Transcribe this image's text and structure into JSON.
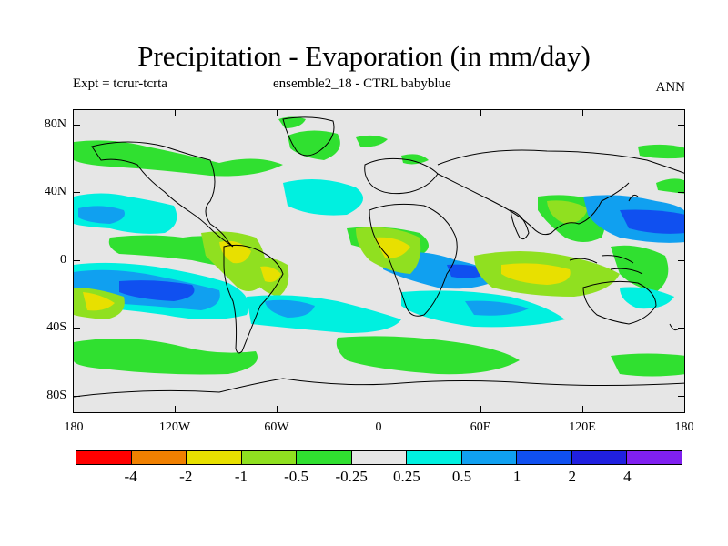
{
  "header": {
    "title": "Precipitation - Evaporation (in mm/day)",
    "expt": "Expt = tcrur-tcrta",
    "run": "ensemble2_18 - CTRL babyblue",
    "season": "ANN"
  },
  "map": {
    "projection": "cylindrical equidistant",
    "lat_labels": [
      "80N",
      "40N",
      "0",
      "40S",
      "80S"
    ],
    "lon_labels": [
      "180",
      "120W",
      "60W",
      "0",
      "60E",
      "120E",
      "180"
    ],
    "background_color": "#e6e6e6",
    "coastline_color": "#000000"
  },
  "colorbar": {
    "colors": [
      "#ff0000",
      "#f08000",
      "#e8e000",
      "#90e020",
      "#30e030",
      "#e6e6e6",
      "#00f0e0",
      "#10a0f0",
      "#1050f0",
      "#2020e0",
      "#8020f0"
    ],
    "labels": [
      "-4",
      "-2",
      "-1",
      "-0.5",
      "-0.25",
      "0.25",
      "0.5",
      "1",
      "2",
      "4"
    ]
  }
}
